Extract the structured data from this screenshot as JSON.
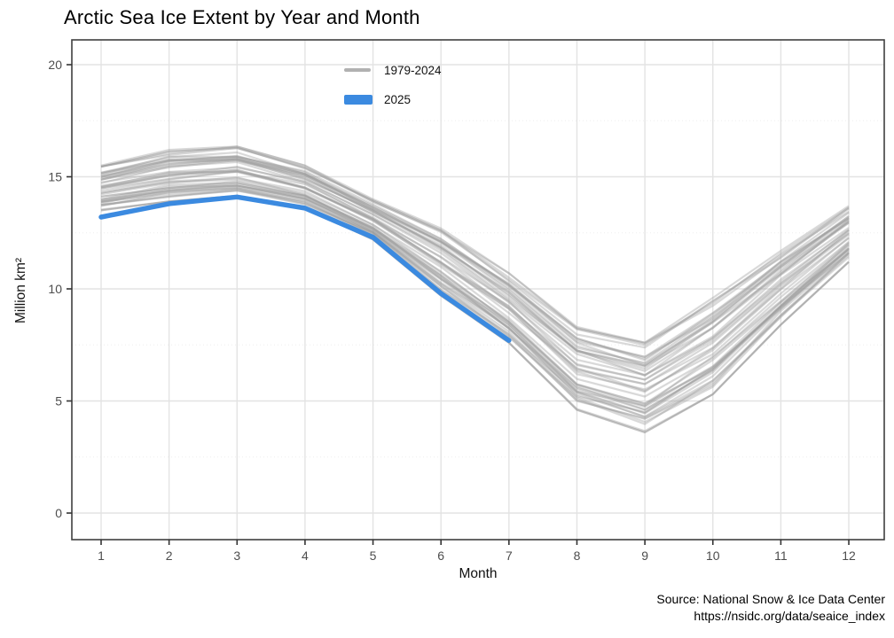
{
  "title": "Arctic Sea Ice Extent by Year and Month",
  "legend": {
    "items": [
      {
        "label": "1979-2024",
        "color": "#b1b1b1"
      },
      {
        "label": "2025",
        "color": "#3b8ae0"
      }
    ]
  },
  "source": {
    "line1": "Source: National Snow & Ice Data Center",
    "line2": "https://nsidc.org/data/seaice_index"
  },
  "colors": {
    "highlight_blue": "#3b8ae0",
    "historical_gray": "#9a9a9a",
    "grid_major": "#e3e3e3",
    "grid_minor": "#ededed",
    "panel_border": "#3f3f3f",
    "tick_label": "#4d4d4d"
  },
  "chart_data": {
    "type": "line",
    "title": "Arctic Sea Ice Extent by Year and Month",
    "xlabel": "Month",
    "ylabel": "Million km²",
    "x_ticks": [
      1,
      2,
      3,
      4,
      5,
      6,
      7,
      8,
      9,
      10,
      11,
      12
    ],
    "y_ticks": [
      0,
      5,
      10,
      15,
      20
    ],
    "ylim": [
      0,
      20
    ],
    "grid": true,
    "legend_position": "top-center-inside",
    "series": [
      {
        "name": "1979-2024",
        "role": "historical-band",
        "color": "#9a9a9a",
        "line_count": 46,
        "months": [
          1,
          2,
          3,
          4,
          5,
          6,
          7,
          8,
          9,
          10,
          11,
          12
        ],
        "envelope_top": [
          15.5,
          16.2,
          16.35,
          15.5,
          14.0,
          12.7,
          10.7,
          8.3,
          7.6,
          9.6,
          11.7,
          13.7
        ],
        "envelope_bottom": [
          13.5,
          13.9,
          14.15,
          13.6,
          12.2,
          9.7,
          7.6,
          4.6,
          3.6,
          5.3,
          8.4,
          11.2
        ]
      },
      {
        "name": "2025",
        "role": "highlight",
        "color": "#3b8ae0",
        "months": [
          1,
          2,
          3,
          4,
          5,
          6,
          7
        ],
        "values": [
          13.2,
          13.8,
          14.1,
          13.6,
          12.3,
          9.8,
          7.7
        ]
      }
    ]
  }
}
